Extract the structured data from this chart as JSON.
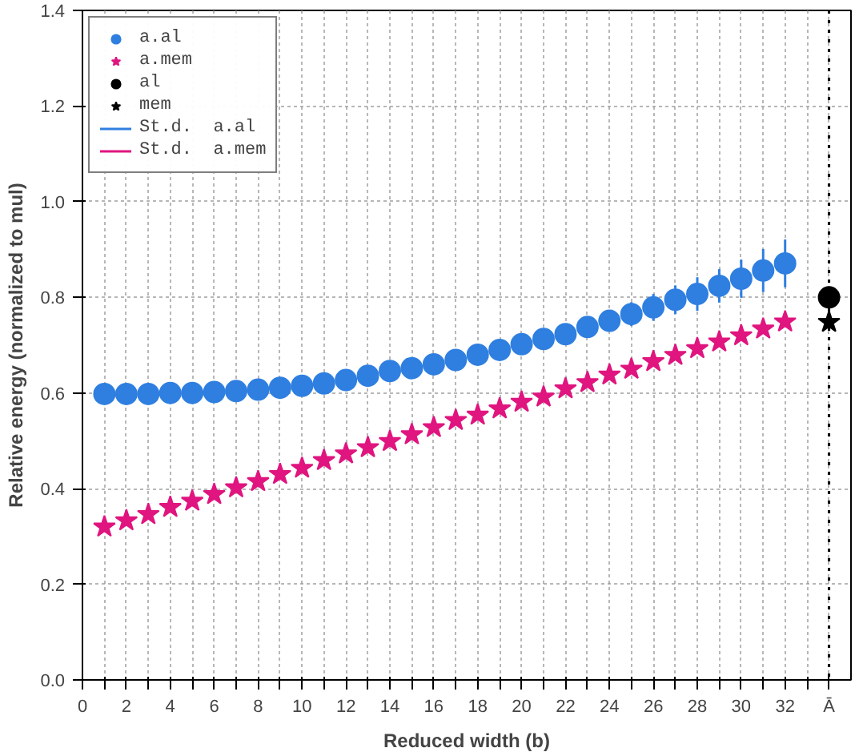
{
  "chart_data": {
    "type": "scatter",
    "xlabel": "Reduced width (b)",
    "ylabel": "Relative energy (normalized to mul)",
    "xlim": [
      0,
      35
    ],
    "ylim": [
      0,
      1.4
    ],
    "xticks": [
      0,
      {
        "value": 1,
        "label": null
      },
      2,
      {
        "value": 3,
        "label": null
      },
      4,
      {
        "value": 5,
        "label": null
      },
      6,
      {
        "value": 7,
        "label": null
      },
      8,
      {
        "value": 9,
        "label": null
      },
      10,
      {
        "value": 11,
        "label": null
      },
      12,
      {
        "value": 13,
        "label": null
      },
      14,
      {
        "value": 15,
        "label": null
      },
      16,
      {
        "value": 17,
        "label": null
      },
      18,
      {
        "value": 19,
        "label": null
      },
      20,
      {
        "value": 21,
        "label": null
      },
      22,
      {
        "value": 23,
        "label": null
      },
      24,
      {
        "value": 25,
        "label": null
      },
      26,
      {
        "value": 27,
        "label": null
      },
      28,
      {
        "value": 29,
        "label": null
      },
      30,
      {
        "value": 31,
        "label": null
      },
      32,
      {
        "value": 33,
        "label": null
      },
      {
        "value": 34,
        "label": "Ā"
      }
    ],
    "yticks": [
      {
        "value": 0,
        "label": "0.0"
      },
      0.2,
      0.4,
      0.6,
      0.8,
      {
        "value": 1.0,
        "label": "1.0"
      },
      1.2,
      1.4
    ],
    "grid": true,
    "legend": "top left",
    "x": [
      1,
      2,
      3,
      4,
      5,
      6,
      7,
      8,
      9,
      10,
      11,
      12,
      13,
      14,
      15,
      16,
      17,
      18,
      19,
      20,
      21,
      22,
      23,
      24,
      25,
      26,
      27,
      28,
      29,
      30,
      31,
      32
    ],
    "series": [
      {
        "name": "a.al",
        "color": "#2f7fe0",
        "marker": "circle",
        "values": [
          0.598,
          0.598,
          0.598,
          0.6,
          0.6,
          0.602,
          0.604,
          0.607,
          0.611,
          0.615,
          0.62,
          0.627,
          0.636,
          0.646,
          0.652,
          0.66,
          0.669,
          0.68,
          0.69,
          0.702,
          0.713,
          0.723,
          0.738,
          0.751,
          0.765,
          0.779,
          0.795,
          0.807,
          0.824,
          0.839,
          0.856,
          0.871
        ],
        "errors": [
          null,
          null,
          null,
          null,
          null,
          null,
          null,
          null,
          null,
          null,
          null,
          null,
          null,
          null,
          null,
          null,
          null,
          null,
          null,
          null,
          null,
          0.01,
          0.012,
          0.02,
          0.025,
          0.028,
          0.03,
          0.035,
          0.035,
          0.04,
          0.045,
          0.05
        ]
      },
      {
        "name": "a.mem",
        "color": "#e0157f",
        "marker": "star",
        "values": [
          0.32,
          0.333,
          0.346,
          0.361,
          0.374,
          0.388,
          0.402,
          0.415,
          0.43,
          0.443,
          0.459,
          0.473,
          0.486,
          0.499,
          0.513,
          0.528,
          0.543,
          0.554,
          0.567,
          0.581,
          0.592,
          0.609,
          0.622,
          0.638,
          0.65,
          0.666,
          0.679,
          0.693,
          0.707,
          0.72,
          0.734,
          0.749
        ]
      },
      {
        "name": "al",
        "color": "#000000",
        "marker": "circle",
        "x": [
          34
        ],
        "values": [
          0.8
        ]
      },
      {
        "name": "mem",
        "color": "#000000",
        "marker": "star",
        "x": [
          34
        ],
        "values": [
          0.748
        ]
      }
    ],
    "annotations": [
      "St.d.  a.al",
      "St.d.  a.mem"
    ],
    "ref_lines": [
      {
        "axis": "x",
        "value": 34,
        "color": "#000000",
        "line_style": "dotted"
      }
    ]
  }
}
